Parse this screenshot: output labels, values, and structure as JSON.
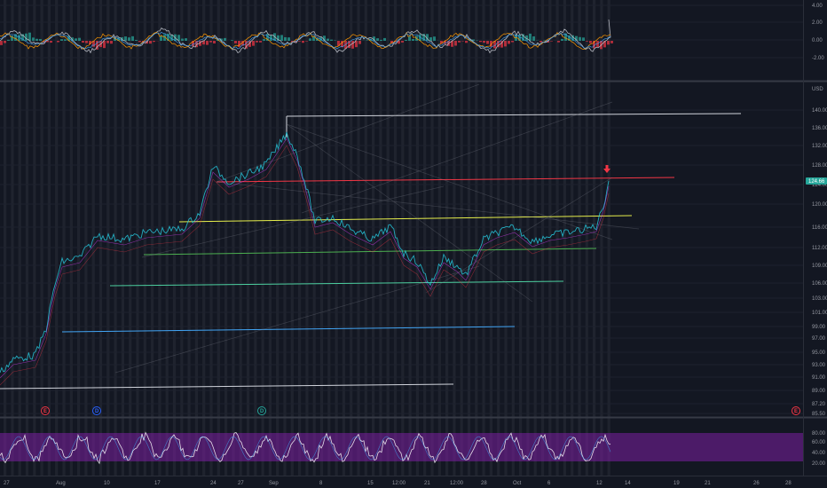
{
  "currency": "USD",
  "indicator_top": {
    "y_ticks": [
      "4.00",
      "2.00",
      "0.00",
      "-2.00"
    ]
  },
  "price_axis": {
    "ticks": [
      "140.00",
      "136.00",
      "132.00",
      "128.00",
      "124.00",
      "120.00",
      "116.00",
      "112.00",
      "109.00",
      "106.00",
      "103.00",
      "101.00",
      "99.00",
      "97.00",
      "95.00",
      "93.00",
      "91.00",
      "89.00",
      "87.20",
      "85.50"
    ],
    "last_price": "124.66",
    "last_price_color": "#26a69a"
  },
  "indicator_bottom": {
    "y_ticks": [
      "80.00",
      "60.00",
      "40.00",
      "20.00"
    ],
    "band_color": "#7b1fa2"
  },
  "time_axis": {
    "labels": [
      "27",
      "Aug",
      "10",
      "17",
      "24",
      "27",
      "Sep",
      "8",
      "15",
      "12:00",
      "21",
      "12:00",
      "28",
      "Oct",
      "6",
      "12",
      "14",
      "19",
      "21",
      "26",
      "28"
    ]
  },
  "events": [
    {
      "label": "E",
      "color": "#f23645"
    },
    {
      "label": "D",
      "color": "#2962ff"
    },
    {
      "label": "D",
      "color": "#26a69a"
    },
    {
      "label": "E",
      "color": "#f23645"
    }
  ],
  "drawings": [
    {
      "name": "resistance-red",
      "color": "#f23645"
    },
    {
      "name": "trend-yellow",
      "color": "#e6ee4b"
    },
    {
      "name": "support-green",
      "color": "#4caf50"
    },
    {
      "name": "support-teal",
      "color": "#4dd0a0"
    },
    {
      "name": "support-blue",
      "color": "#42a5f5"
    },
    {
      "name": "level-white-top",
      "color": "#d1d4dc"
    },
    {
      "name": "level-white-bottom",
      "color": "#d1d4dc"
    }
  ],
  "signal_arrow": {
    "icon": "arrow-down-icon",
    "color": "#f23645"
  }
}
